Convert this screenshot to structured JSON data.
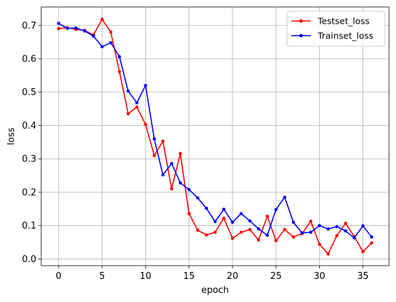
{
  "chart_data": {
    "type": "line",
    "title": "",
    "xlabel": "epoch",
    "ylabel": "loss",
    "xlim": [
      -2.0,
      38.0
    ],
    "ylim": [
      -0.02,
      0.755
    ],
    "xticks": [
      0,
      5,
      10,
      15,
      20,
      25,
      30,
      35
    ],
    "yticks": [
      0.0,
      0.1,
      0.2,
      0.3,
      0.4,
      0.5,
      0.6,
      0.7
    ],
    "grid": true,
    "legend_position": "top-right",
    "x": [
      0,
      1,
      2,
      3,
      4,
      5,
      6,
      7,
      8,
      9,
      10,
      11,
      12,
      13,
      14,
      15,
      16,
      17,
      18,
      19,
      20,
      21,
      22,
      23,
      24,
      25,
      26,
      27,
      28,
      29,
      30,
      31,
      32,
      33,
      34,
      35,
      36
    ],
    "series": [
      {
        "name": "Testset_loss",
        "color": "#ff0000",
        "values": [
          0.69,
          0.693,
          0.688,
          0.685,
          0.671,
          0.718,
          0.68,
          0.561,
          0.435,
          0.455,
          0.403,
          0.31,
          0.353,
          0.21,
          0.316,
          0.136,
          0.086,
          0.072,
          0.08,
          0.122,
          0.062,
          0.08,
          0.088,
          0.057,
          0.128,
          0.055,
          0.088,
          0.066,
          0.076,
          0.113,
          0.044,
          0.015,
          0.07,
          0.107,
          0.067,
          0.022,
          0.048
        ]
      },
      {
        "name": "Trainset_loss",
        "color": "#0000ff",
        "values": [
          0.706,
          0.691,
          0.692,
          0.683,
          0.668,
          0.636,
          0.648,
          0.606,
          0.503,
          0.468,
          0.52,
          0.36,
          0.252,
          0.286,
          0.228,
          0.208,
          0.183,
          0.152,
          0.112,
          0.149,
          0.11,
          0.136,
          0.114,
          0.09,
          0.071,
          0.148,
          0.185,
          0.11,
          0.078,
          0.08,
          0.1,
          0.09,
          0.097,
          0.084,
          0.063,
          0.099,
          0.066
        ]
      }
    ]
  }
}
